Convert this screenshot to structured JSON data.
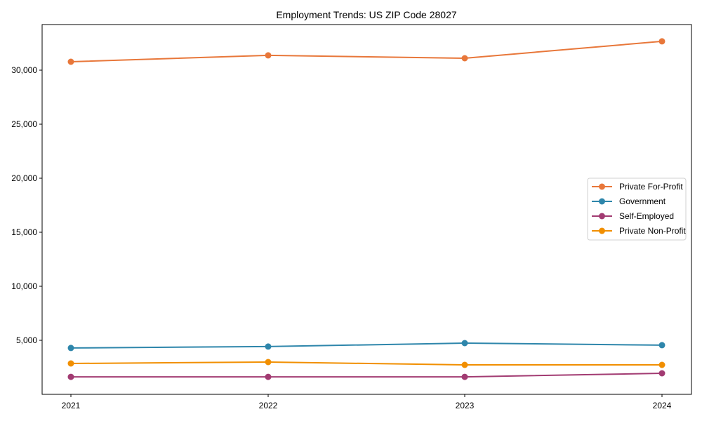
{
  "chart_data": {
    "type": "line",
    "title": "Employment Trends: US ZIP Code 28027",
    "xlabel": "",
    "ylabel": "",
    "categories": [
      "2021",
      "2022",
      "2023",
      "2024"
    ],
    "series": [
      {
        "name": "Private For-Profit",
        "color": "#e8773a",
        "values": [
          30780,
          31370,
          31100,
          32670
        ]
      },
      {
        "name": "Government",
        "color": "#2e86ab",
        "values": [
          4290,
          4420,
          4740,
          4550
        ]
      },
      {
        "name": "Self-Employed",
        "color": "#a23b72",
        "values": [
          1620,
          1620,
          1620,
          1950
        ]
      },
      {
        "name": "Private Non-Profit",
        "color": "#f18f01",
        "values": [
          2860,
          2990,
          2730,
          2730
        ]
      }
    ],
    "ylim": [
      0,
      34220
    ],
    "yticks": [
      5000,
      10000,
      15000,
      20000,
      25000,
      30000
    ],
    "ytick_labels": [
      "5,000",
      "10,000",
      "15,000",
      "20,000",
      "25,000",
      "30,000"
    ],
    "grid": false,
    "legend_position": "center right"
  }
}
